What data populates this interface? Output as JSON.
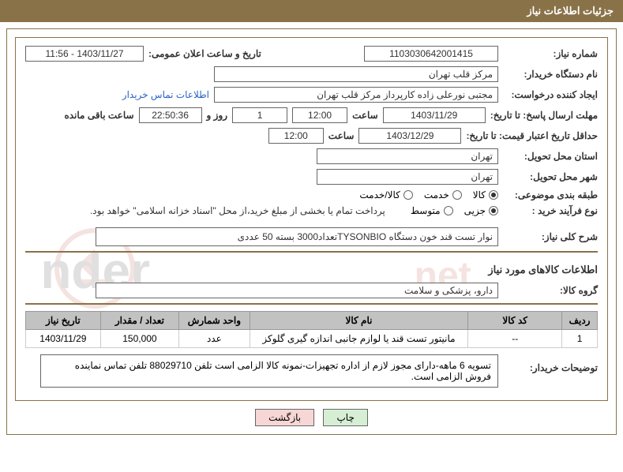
{
  "header_title": "جزئیات اطلاعات نیاز",
  "need_number_label": "شماره نیاز:",
  "need_number": "1103030642001415",
  "announce_date_label": "تاریخ و ساعت اعلان عمومی:",
  "announce_date": "1403/11/27 - 11:56",
  "buyer_org_label": "نام دستگاه خریدار:",
  "buyer_org": "مرکز قلب تهران",
  "requester_label": "ایجاد کننده درخواست:",
  "requester": "مجتبی نورعلی زاده کارپرداز مرکز قلب تهران",
  "contact_link": "اطلاعات تماس خریدار",
  "response_deadline_label": "مهلت ارسال پاسخ: تا تاریخ:",
  "response_deadline_date": "1403/11/29",
  "time_label": "ساعت",
  "response_deadline_time": "12:00",
  "days_remaining": "1",
  "days_and_label": "روز و",
  "time_remaining": "22:50:36",
  "time_remaining_label": "ساعت باقی مانده",
  "price_validity_label": "حداقل تاریخ اعتبار قیمت: تا تاریخ:",
  "price_validity_date": "1403/12/29",
  "price_validity_time": "12:00",
  "delivery_province_label": "استان محل تحویل:",
  "delivery_province": "تهران",
  "delivery_city_label": "شهر محل تحویل:",
  "delivery_city": "تهران",
  "subject_class_label": "طبقه بندی موضوعی:",
  "subject_options": {
    "goods": "کالا",
    "service": "خدمت",
    "goods_service": "کالا/خدمت"
  },
  "purchase_type_label": "نوع فرآیند خرید :",
  "purchase_options": {
    "partial": "جزیی",
    "medium": "متوسط"
  },
  "purchase_note": "پرداخت تمام یا بخشی از مبلغ خرید،از محل \"اسناد خزانه اسلامی\" خواهد بود.",
  "need_desc_label": "شرح کلی نیاز:",
  "need_desc": "نوار تست قند خون دستگاه TYSONBIOتعداد3000 بسته 50 عددی",
  "goods_section_title": "اطلاعات کالاهای مورد نیاز",
  "goods_group_label": "گروه کالا:",
  "goods_group": "دارو، پزشکی و سلامت",
  "table": {
    "columns": [
      "ردیف",
      "کد کالا",
      "نام کالا",
      "واحد شمارش",
      "تعداد / مقدار",
      "تاریخ نیاز"
    ],
    "rows": [
      [
        "1",
        "--",
        "مانیتور تست قند یا لوازم جانبی اندازه گیری گلوکز",
        "عدد",
        "150,000",
        "1403/11/29"
      ]
    ],
    "col_widths": [
      "45px",
      "120px",
      "280px",
      "90px",
      "100px",
      "95px"
    ]
  },
  "buyer_notes_label": "توضیحات خریدار:",
  "buyer_notes": "تسویه 6 ماهه-دارای مجوز لازم از اداره تجهیزات-نمونه کالا الزامی است تلفن 88029710 تلفن تماس نماینده فروش الزامی است.",
  "btn_print": "چاپ",
  "btn_back": "بازگشت",
  "colors": {
    "header_bg": "#8a7248",
    "border": "#8a7248",
    "link": "#2a63c4",
    "th_bg": "#c2c2c2"
  }
}
